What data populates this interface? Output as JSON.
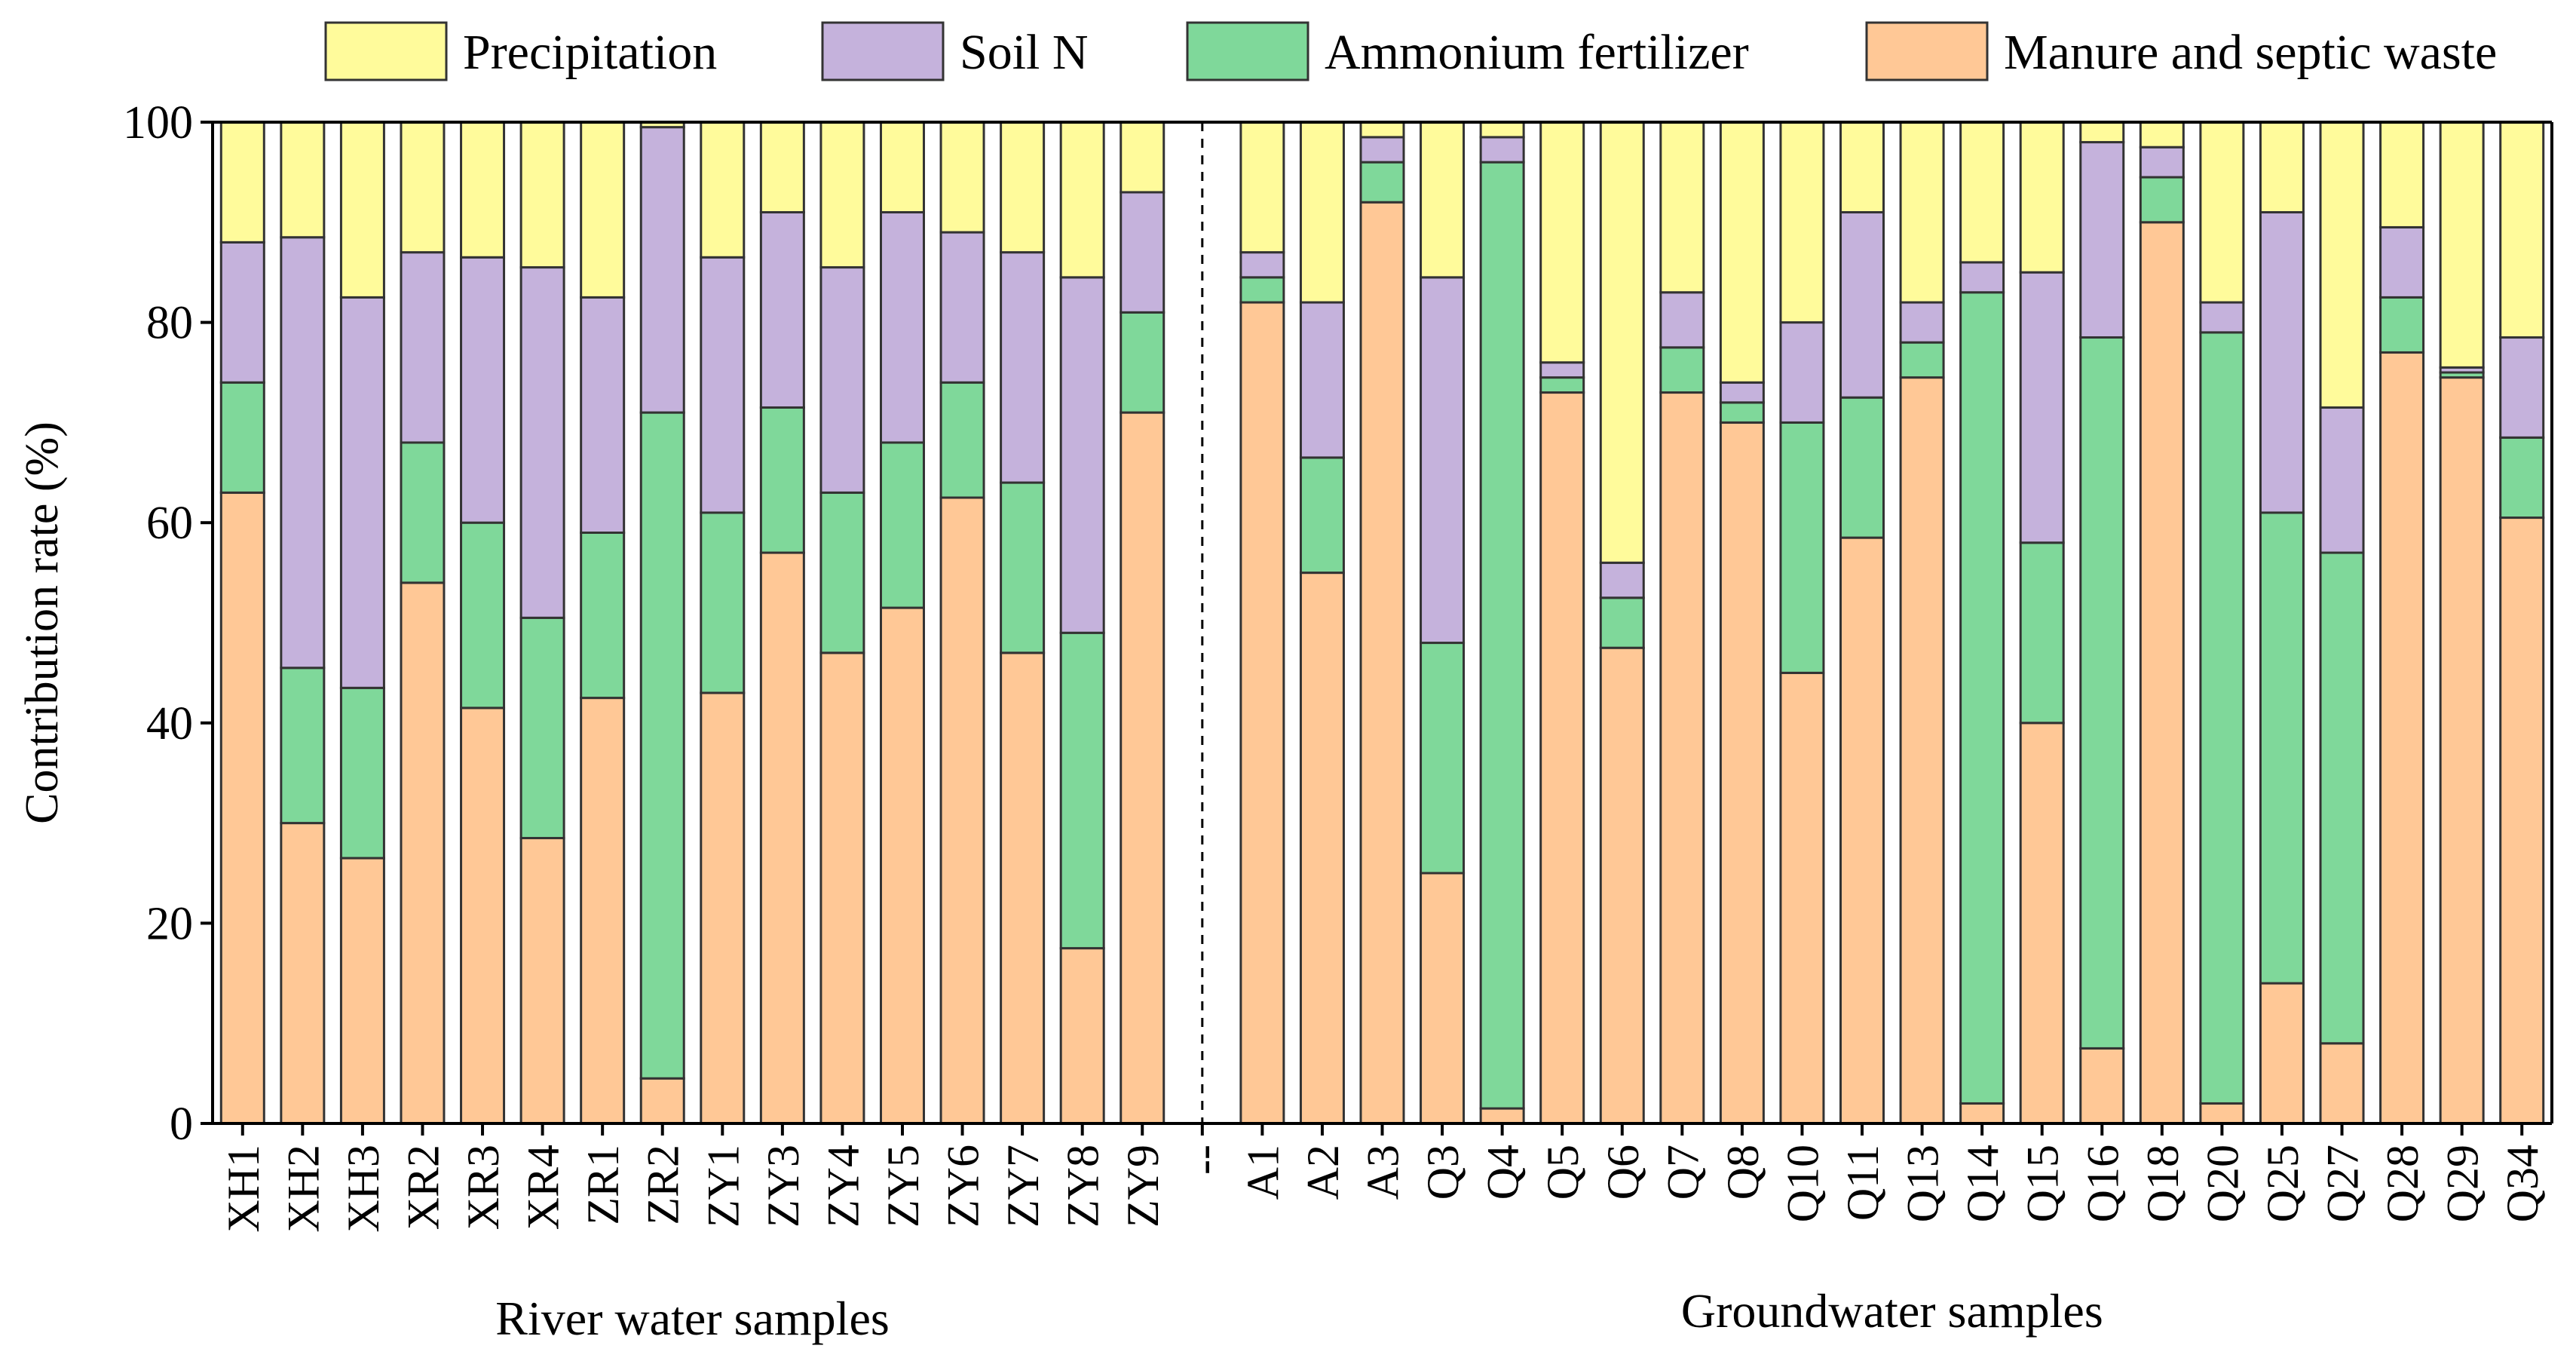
{
  "chart_data": {
    "type": "bar",
    "stacked": true,
    "title": "",
    "xlabel": "",
    "ylabel": "Contribution rate (%)",
    "ylim": [
      0,
      100
    ],
    "yticks": [
      0,
      20,
      40,
      60,
      80,
      100
    ],
    "grid": false,
    "legend_position": "top",
    "group_labels": [
      "River water samples",
      "Groundwater samples"
    ],
    "separator_label": "--",
    "categories": [
      "XH1",
      "XH2",
      "XH3",
      "XR2",
      "XR3",
      "XR4",
      "ZR1",
      "ZR2",
      "ZY1",
      "ZY3",
      "ZY4",
      "ZY5",
      "ZY6",
      "ZY7",
      "ZY8",
      "ZY9",
      "--",
      "A1",
      "A2",
      "A3",
      "Q3",
      "Q4",
      "Q5",
      "Q6",
      "Q7",
      "Q8",
      "Q10",
      "Q11",
      "Q13",
      "Q14",
      "Q15",
      "Q16",
      "Q18",
      "Q20",
      "Q25",
      "Q27",
      "Q28",
      "Q29",
      "Q34"
    ],
    "series": [
      {
        "name": "Manure and septic waste",
        "color": "#ffc896",
        "values": [
          63,
          30,
          26.5,
          54,
          41.5,
          28.5,
          42.5,
          4.5,
          43,
          57,
          47,
          51.5,
          62.5,
          47,
          17.5,
          71,
          null,
          82,
          55,
          92,
          25,
          1.5,
          73,
          47.5,
          73,
          70,
          45,
          58.5,
          74.5,
          2,
          40,
          7.5,
          90,
          2,
          14,
          8,
          77,
          74.5,
          60.5
        ]
      },
      {
        "name": "Ammonium fertilizer",
        "color": "#7fd89a",
        "values": [
          11,
          15.5,
          17,
          14,
          18.5,
          22,
          16.5,
          66.5,
          18,
          14.5,
          16,
          16.5,
          11.5,
          17,
          31.5,
          10,
          null,
          2.5,
          11.5,
          4,
          23,
          94.5,
          1.5,
          5,
          4.5,
          2,
          25,
          14,
          3.5,
          81,
          18,
          71,
          4.5,
          77,
          47,
          49,
          5.5,
          0.5,
          8
        ]
      },
      {
        "name": "Soil N",
        "color": "#c5b2dc",
        "values": [
          14,
          43,
          39,
          19,
          26.5,
          35,
          23.5,
          28.5,
          25.5,
          19.5,
          22.5,
          23,
          15,
          23,
          35.5,
          12,
          null,
          2.5,
          15.5,
          2.5,
          36.5,
          2.5,
          1.5,
          3.5,
          5.5,
          2,
          10,
          18.5,
          4,
          3,
          27,
          19.5,
          3,
          3,
          30,
          14.5,
          7,
          0.5,
          10
        ]
      },
      {
        "name": "Precipitation",
        "color": "#fffb9b",
        "values": [
          12,
          11.5,
          17.5,
          13,
          13.5,
          14.5,
          17.5,
          0.5,
          13.5,
          9,
          14.5,
          9,
          11,
          13,
          15.5,
          7,
          null,
          13,
          18,
          1.5,
          15.5,
          1.5,
          24,
          44,
          17,
          26,
          20,
          9,
          18,
          14,
          15,
          2,
          2.5,
          18,
          9,
          28.5,
          10.5,
          24.5,
          21.5
        ]
      }
    ]
  }
}
